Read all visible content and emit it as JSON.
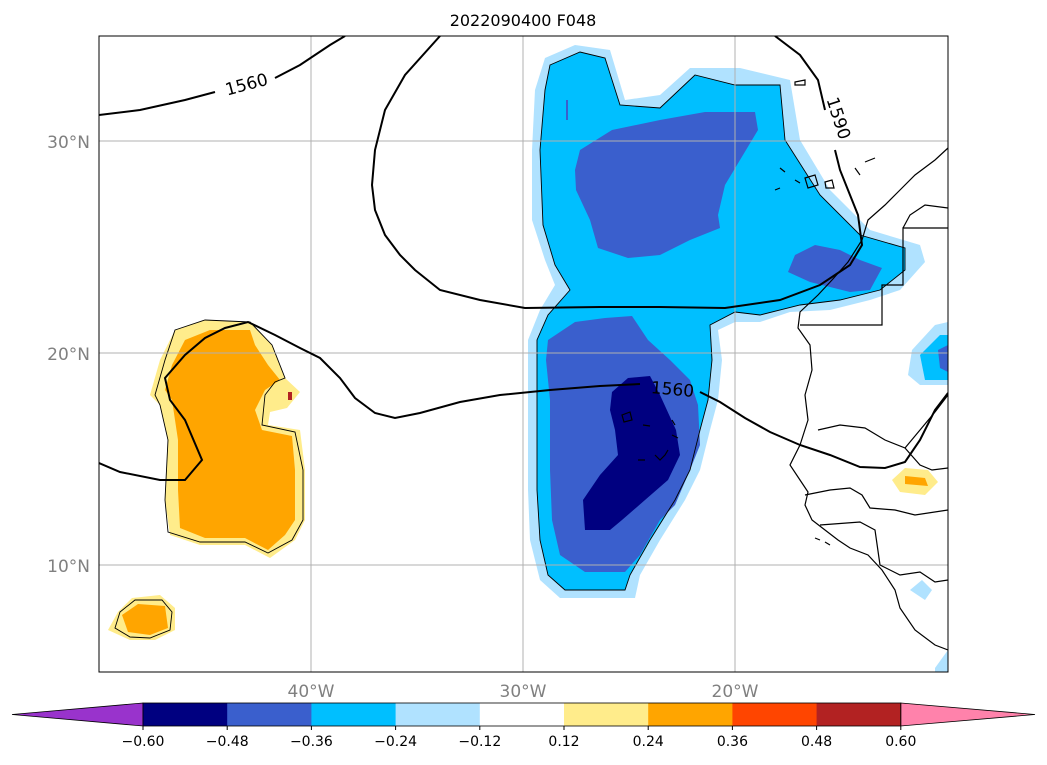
{
  "title": "2022090400 F048",
  "lat_labels": [
    "30°N",
    "20°N",
    "10°N"
  ],
  "lon_labels": [
    "40°W",
    "30°W",
    "20°W"
  ],
  "contour_labels": [
    "1560",
    "1590",
    "1560"
  ],
  "colorbar": {
    "ticks": [
      "−0.60",
      "−0.48",
      "−0.36",
      "−0.24",
      "−0.12",
      "0.12",
      "0.24",
      "0.36",
      "0.48",
      "0.60"
    ],
    "colors": [
      "#9933cc",
      "#000080",
      "#3a5fcd",
      "#00bfff",
      "#b0e2ff",
      "#ffffff",
      "#ffec8b",
      "#ffa500",
      "#ff4500",
      "#b22222",
      "#ff82ab"
    ]
  },
  "fill_colors": {
    "dark_blue": "#000080",
    "mid_blue": "#3a5fcd",
    "cyan": "#00bfff",
    "light_blue": "#b0e2ff",
    "yellow": "#ffec8b",
    "orange": "#ffa500",
    "red": "#ff4500"
  }
}
